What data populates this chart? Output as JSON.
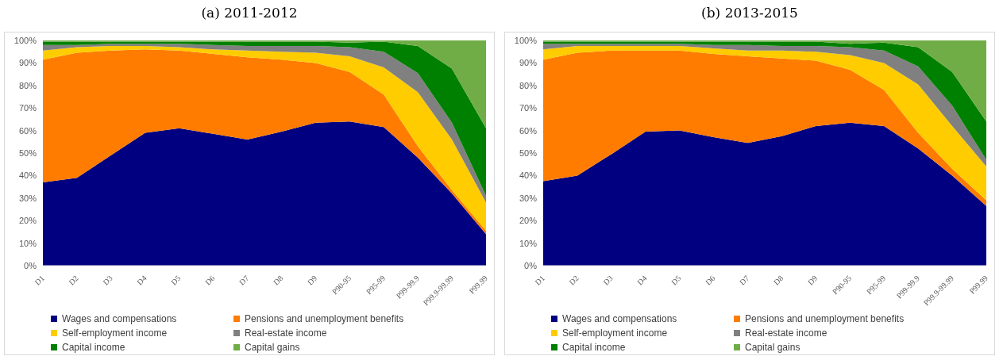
{
  "chart_data": [
    {
      "type": "area",
      "title": "(a) 2011-2012",
      "stacked": true,
      "legend": "bottom",
      "categories": [
        "D1",
        "D2",
        "D3",
        "D4",
        "D5",
        "D6",
        "D7",
        "D8",
        "D9",
        "P90-95",
        "P95-99",
        "P99-99.9",
        "P99.9-99.99",
        "P99.99"
      ],
      "ylim": [
        0,
        100
      ],
      "yticks": [
        {
          "value": 0,
          "label": "0%"
        },
        {
          "value": 10,
          "label": "10%"
        },
        {
          "value": 20,
          "label": "20%"
        },
        {
          "value": 30,
          "label": "30%"
        },
        {
          "value": 40,
          "label": "40%"
        },
        {
          "value": 50,
          "label": "50%"
        },
        {
          "value": 60,
          "label": "60%"
        },
        {
          "value": 70,
          "label": "70%"
        },
        {
          "value": 80,
          "label": "80%"
        },
        {
          "value": 90,
          "label": "90%"
        },
        {
          "value": 100,
          "label": "100%"
        }
      ],
      "series": [
        {
          "name": "Wages and compensations",
          "color": "#000080",
          "values": [
            37,
            39,
            49,
            59,
            61,
            58.5,
            56,
            59.5,
            63.5,
            64,
            61.5,
            48,
            32,
            14
          ]
        },
        {
          "name": "Pensions and unemployment benefits",
          "color": "#ff7c00",
          "values": [
            54.5,
            55.5,
            46.5,
            37,
            34.5,
            35.5,
            36.5,
            32,
            26.5,
            22,
            14.5,
            5,
            1.5,
            1.5
          ]
        },
        {
          "name": "Self-employment income",
          "color": "#ffcc00",
          "values": [
            4,
            2.5,
            2,
            1.5,
            1.5,
            2,
            3,
            3.5,
            4.5,
            7,
            12,
            24,
            22.5,
            12.5
          ]
        },
        {
          "name": "Real-estate income",
          "color": "#808080",
          "values": [
            2.5,
            1,
            1,
            1,
            1.5,
            2,
            2,
            2.5,
            3,
            4,
            7,
            8.5,
            7.5,
            3
          ]
        },
        {
          "name": "Capital income",
          "color": "#008000",
          "values": [
            1.5,
            1.5,
            1,
            1,
            1,
            1.5,
            2,
            2,
            2,
            2,
            4.5,
            12,
            24,
            30
          ]
        },
        {
          "name": "Capital gains",
          "color": "#70ad47",
          "values": [
            0.5,
            0.5,
            0.5,
            0.5,
            0.5,
            0.5,
            0.5,
            0.5,
            0.5,
            1,
            0.5,
            2.5,
            12.5,
            39
          ]
        }
      ]
    },
    {
      "type": "area",
      "title": "(b) 2013-2015",
      "stacked": true,
      "legend": "bottom",
      "categories": [
        "D1",
        "D2",
        "D3",
        "D4",
        "D5",
        "D6",
        "D7",
        "D8",
        "D9",
        "P90-95",
        "P95-99",
        "P99-99.9",
        "P99.9-99.99",
        "P99.99"
      ],
      "ylim": [
        0,
        100
      ],
      "yticks": [
        {
          "value": 0,
          "label": "0%"
        },
        {
          "value": 10,
          "label": "10%"
        },
        {
          "value": 20,
          "label": "20%"
        },
        {
          "value": 30,
          "label": "30%"
        },
        {
          "value": 40,
          "label": "40%"
        },
        {
          "value": 50,
          "label": "50%"
        },
        {
          "value": 60,
          "label": "60%"
        },
        {
          "value": 70,
          "label": "70%"
        },
        {
          "value": 80,
          "label": "80%"
        },
        {
          "value": 90,
          "label": "90%"
        },
        {
          "value": 100,
          "label": "100%"
        }
      ],
      "series": [
        {
          "name": "Wages and compensations",
          "color": "#000080",
          "values": [
            37.5,
            40,
            49.5,
            59.5,
            60,
            57,
            54.5,
            57.5,
            62,
            63.5,
            62,
            52,
            40,
            26.5
          ]
        },
        {
          "name": "Pensions and unemployment benefits",
          "color": "#ff7c00",
          "values": [
            54,
            54.5,
            46,
            36,
            35.5,
            37,
            38.5,
            34.5,
            29,
            23.5,
            16,
            7,
            3,
            2.5
          ]
        },
        {
          "name": "Self-employment income",
          "color": "#ffcc00",
          "values": [
            4.5,
            3,
            2,
            2,
            2,
            2.5,
            2.5,
            3.5,
            4,
            6.5,
            12,
            21.5,
            19,
            15
          ]
        },
        {
          "name": "Real-estate income",
          "color": "#808080",
          "values": [
            2.5,
            1,
            1,
            1,
            1,
            1.5,
            2.5,
            2,
            2.5,
            3.5,
            5.5,
            8,
            9,
            3
          ]
        },
        {
          "name": "Capital income",
          "color": "#008000",
          "values": [
            1,
            1,
            1,
            1,
            1,
            1.5,
            1.5,
            2,
            2,
            1.5,
            3.5,
            8.5,
            15,
            17
          ]
        },
        {
          "name": "Capital gains",
          "color": "#70ad47",
          "values": [
            0.5,
            0.5,
            0.5,
            0.5,
            0.5,
            0.5,
            0.5,
            0.5,
            0.5,
            1.5,
            1,
            3,
            14,
            36
          ]
        }
      ]
    }
  ]
}
